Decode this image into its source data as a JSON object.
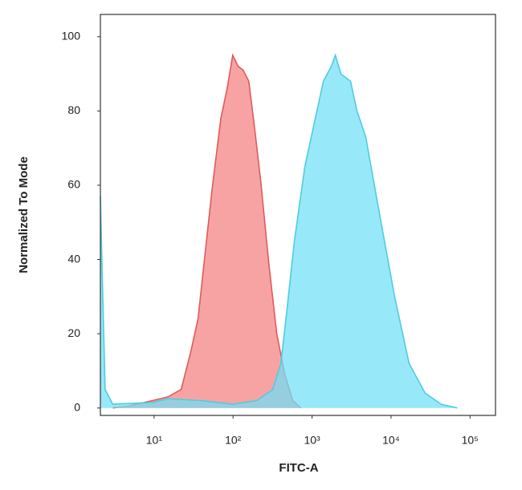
{
  "chart_data": {
    "type": "area",
    "xlabel": "FITC-A",
    "ylabel": "Normalized To Mode",
    "xscale": "log",
    "xlim": [
      2.09,
      210000
    ],
    "xticks": [
      {
        "value": 10,
        "label": "10¹"
      },
      {
        "value": 100,
        "label": "10²"
      },
      {
        "value": 1000,
        "label": "10³"
      },
      {
        "value": 10000,
        "label": "10⁴"
      },
      {
        "value": 100000,
        "label": "10⁵"
      }
    ],
    "ylim": [
      -2,
      106
    ],
    "yticks": [
      0,
      20,
      40,
      60,
      80,
      100
    ],
    "series": [
      {
        "color": "#e05a5a",
        "fill": "#f8a3a3",
        "x": [
          3,
          4.7,
          9.5,
          15,
          22,
          29,
          36,
          46,
          55,
          70,
          84,
          99,
          116,
          134,
          158,
          186,
          224,
          283,
          357,
          452,
          570,
          721
        ],
        "values": [
          0,
          0.5,
          2,
          3,
          5,
          15,
          24,
          45,
          60,
          78,
          86,
          95,
          92,
          91,
          88,
          76,
          61,
          39,
          20,
          9,
          2,
          0
        ]
      },
      {
        "color": "#4fcbe2",
        "fill": "#6fe0f7",
        "x": [
          2.09,
          2.24,
          2.4,
          3,
          9.5,
          15,
          39,
          99,
          200,
          318,
          402,
          473,
          598,
          811,
          1150,
          1390,
          1750,
          1970,
          2320,
          3070,
          3700,
          4790,
          5260,
          7470,
          11100,
          16900,
          27000,
          43100,
          68900
        ],
        "values": [
          57,
          30,
          5,
          1,
          1.5,
          2.5,
          2,
          1,
          2,
          5,
          12,
          25,
          45,
          65,
          80,
          88,
          92,
          95,
          90,
          88,
          80,
          73,
          68,
          50,
          30,
          12,
          4,
          1,
          0
        ]
      }
    ]
  }
}
